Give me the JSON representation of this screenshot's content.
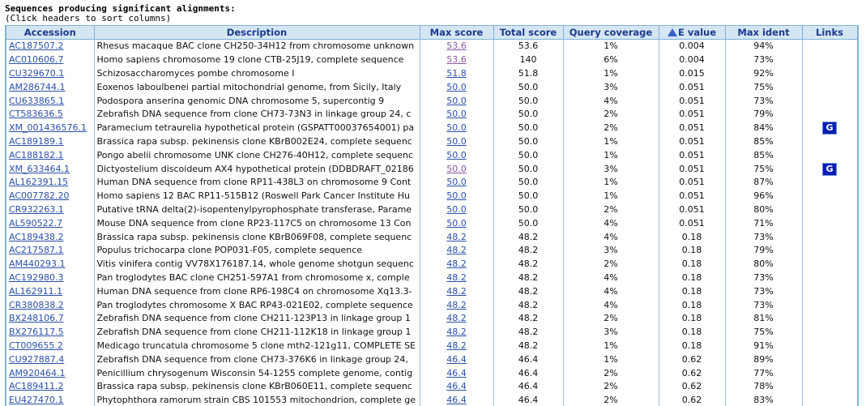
{
  "heading": {
    "title": "Sequences producing significant alignments:",
    "hint": "(Click headers to sort columns)"
  },
  "columns": {
    "accession": "Accession",
    "description": "Description",
    "max_score": "Max score",
    "total_score": "Total score",
    "query_coverage": "Query coverage",
    "e_value": "E value",
    "max_ident": "Max ident",
    "links": "Links"
  },
  "rows": [
    {
      "acc": "AC187507.2",
      "desc": "Rhesus macaque BAC clone CH250-34H12 from chromosome unknown",
      "max": "53.6",
      "total": "53.6",
      "cov": "1%",
      "e": "0.004",
      "ident": "94%",
      "visited": true,
      "link": ""
    },
    {
      "acc": "AC010606.7",
      "desc": "Homo sapiens chromosome 19 clone CTB-25J19, complete sequence",
      "max": "53.6",
      "total": "140",
      "cov": "6%",
      "e": "0.004",
      "ident": "73%",
      "visited": true,
      "link": ""
    },
    {
      "acc": "CU329670.1",
      "desc": "Schizosaccharomyces pombe chromosome I",
      "max": "51.8",
      "total": "51.8",
      "cov": "1%",
      "e": "0.015",
      "ident": "92%",
      "visited": false,
      "link": ""
    },
    {
      "acc": "AM286744.1",
      "desc": "Eoxenos laboulbenei partial mitochondrial genome, from Sicily, Italy",
      "max": "50.0",
      "total": "50.0",
      "cov": "3%",
      "e": "0.051",
      "ident": "75%",
      "visited": false,
      "link": ""
    },
    {
      "acc": "CU633865.1",
      "desc": "Podospora anserina genomic DNA chromosome 5, supercontig 9",
      "max": "50.0",
      "total": "50.0",
      "cov": "4%",
      "e": "0.051",
      "ident": "73%",
      "visited": false,
      "link": ""
    },
    {
      "acc": "CT583636.5",
      "desc": "Zebrafish DNA sequence from clone CH73-73N3 in linkage group 24, c",
      "max": "50.0",
      "total": "50.0",
      "cov": "2%",
      "e": "0.051",
      "ident": "79%",
      "visited": false,
      "link": ""
    },
    {
      "acc": "XM_001436576.1",
      "desc": "Paramecium tetraurelia hypothetical protein (GSPATT00037654001) pa",
      "max": "50.0",
      "total": "50.0",
      "cov": "2%",
      "e": "0.051",
      "ident": "84%",
      "visited": false,
      "link": "G"
    },
    {
      "acc": "AC189189.1",
      "desc": "Brassica rapa subsp. pekinensis clone KBrB002E24, complete sequenc",
      "max": "50.0",
      "total": "50.0",
      "cov": "1%",
      "e": "0.051",
      "ident": "85%",
      "visited": false,
      "link": ""
    },
    {
      "acc": "AC188182.1",
      "desc": "Pongo abelii chromosome UNK clone CH276-40H12, complete sequenc",
      "max": "50.0",
      "total": "50.0",
      "cov": "1%",
      "e": "0.051",
      "ident": "85%",
      "visited": false,
      "link": ""
    },
    {
      "acc": "XM_633464.1",
      "desc": "Dictyostelium discoideum AX4 hypothetical protein (DDBDRAFT_02186",
      "max": "50.0",
      "total": "50.0",
      "cov": "3%",
      "e": "0.051",
      "ident": "75%",
      "visited": true,
      "link": "G"
    },
    {
      "acc": "AL162391.15",
      "desc": "Human DNA sequence from clone RP11-438L3 on chromosome 9 Cont",
      "max": "50.0",
      "total": "50.0",
      "cov": "1%",
      "e": "0.051",
      "ident": "87%",
      "visited": false,
      "link": ""
    },
    {
      "acc": "AC007782.20",
      "desc": "Homo sapiens 12 BAC RP11-515B12 (Roswell Park Cancer Institute Hu",
      "max": "50.0",
      "total": "50.0",
      "cov": "1%",
      "e": "0.051",
      "ident": "96%",
      "visited": false,
      "link": ""
    },
    {
      "acc": "CR932263.1",
      "desc": "Putative tRNA delta(2)-isopentenylpyrophosphate transferase, Parame",
      "max": "50.0",
      "total": "50.0",
      "cov": "2%",
      "e": "0.051",
      "ident": "80%",
      "visited": false,
      "link": ""
    },
    {
      "acc": "AL590522.7",
      "desc": "Mouse DNA sequence from clone RP23-117C5 on chromosome 13 Con",
      "max": "50.0",
      "total": "50.0",
      "cov": "4%",
      "e": "0.051",
      "ident": "71%",
      "visited": false,
      "link": ""
    },
    {
      "acc": "AC189438.2",
      "desc": "Brassica rapa subsp. pekinensis clone KBrB069F08, complete sequenc",
      "max": "48.2",
      "total": "48.2",
      "cov": "4%",
      "e": "0.18",
      "ident": "73%",
      "visited": false,
      "link": ""
    },
    {
      "acc": "AC217587.1",
      "desc": "Populus trichocarpa clone POP031-F05, complete sequence",
      "max": "48.2",
      "total": "48.2",
      "cov": "3%",
      "e": "0.18",
      "ident": "79%",
      "visited": false,
      "link": ""
    },
    {
      "acc": "AM440293.1",
      "desc": "Vitis vinifera contig VV78X176187.14, whole genome shotgun sequenc",
      "max": "48.2",
      "total": "48.2",
      "cov": "2%",
      "e": "0.18",
      "ident": "80%",
      "visited": false,
      "link": ""
    },
    {
      "acc": "AC192980.3",
      "desc": "Pan troglodytes BAC clone CH251-597A1 from chromosome x, comple",
      "max": "48.2",
      "total": "48.2",
      "cov": "4%",
      "e": "0.18",
      "ident": "73%",
      "visited": false,
      "link": ""
    },
    {
      "acc": "AL162911.1",
      "desc": "Human DNA sequence from clone RP6-198C4 on chromosome Xq13.3-",
      "max": "48.2",
      "total": "48.2",
      "cov": "4%",
      "e": "0.18",
      "ident": "73%",
      "visited": false,
      "link": ""
    },
    {
      "acc": "CR380838.2",
      "desc": "Pan troglodytes chromosome X BAC RP43-021E02, complete sequence",
      "max": "48.2",
      "total": "48.2",
      "cov": "4%",
      "e": "0.18",
      "ident": "73%",
      "visited": false,
      "link": ""
    },
    {
      "acc": "BX248106.7",
      "desc": "Zebrafish DNA sequence from clone CH211-123P13 in linkage group 1",
      "max": "48.2",
      "total": "48.2",
      "cov": "2%",
      "e": "0.18",
      "ident": "81%",
      "visited": false,
      "link": ""
    },
    {
      "acc": "BX276117.5",
      "desc": "Zebrafish DNA sequence from clone CH211-112K18 in linkage group 1",
      "max": "48.2",
      "total": "48.2",
      "cov": "3%",
      "e": "0.18",
      "ident": "75%",
      "visited": false,
      "link": ""
    },
    {
      "acc": "CT009655.2",
      "desc": "Medicago truncatula chromosome 5 clone mth2-121g11, COMPLETE SE",
      "max": "48.2",
      "total": "48.2",
      "cov": "1%",
      "e": "0.18",
      "ident": "91%",
      "visited": false,
      "link": ""
    },
    {
      "acc": "CU927887.4",
      "desc": "Zebrafish DNA sequence from clone CH73-376K6 in linkage group 24,",
      "max": "46.4",
      "total": "46.4",
      "cov": "1%",
      "e": "0.62",
      "ident": "89%",
      "visited": false,
      "link": ""
    },
    {
      "acc": "AM920464.1",
      "desc": "Penicillium chrysogenum Wisconsin 54-1255 complete genome, contig",
      "max": "46.4",
      "total": "46.4",
      "cov": "2%",
      "e": "0.62",
      "ident": "77%",
      "visited": false,
      "link": ""
    },
    {
      "acc": "AC189411.2",
      "desc": "Brassica rapa subsp. pekinensis clone KBrB060E11, complete sequenc",
      "max": "46.4",
      "total": "46.4",
      "cov": "2%",
      "e": "0.62",
      "ident": "78%",
      "visited": false,
      "link": ""
    },
    {
      "acc": "EU427470.1",
      "desc": "Phytophthora ramorum strain CBS 101553 mitochondrion, complete ge",
      "max": "46.4",
      "total": "46.4",
      "cov": "2%",
      "e": "0.62",
      "ident": "83%",
      "visited": false,
      "link": ""
    }
  ]
}
